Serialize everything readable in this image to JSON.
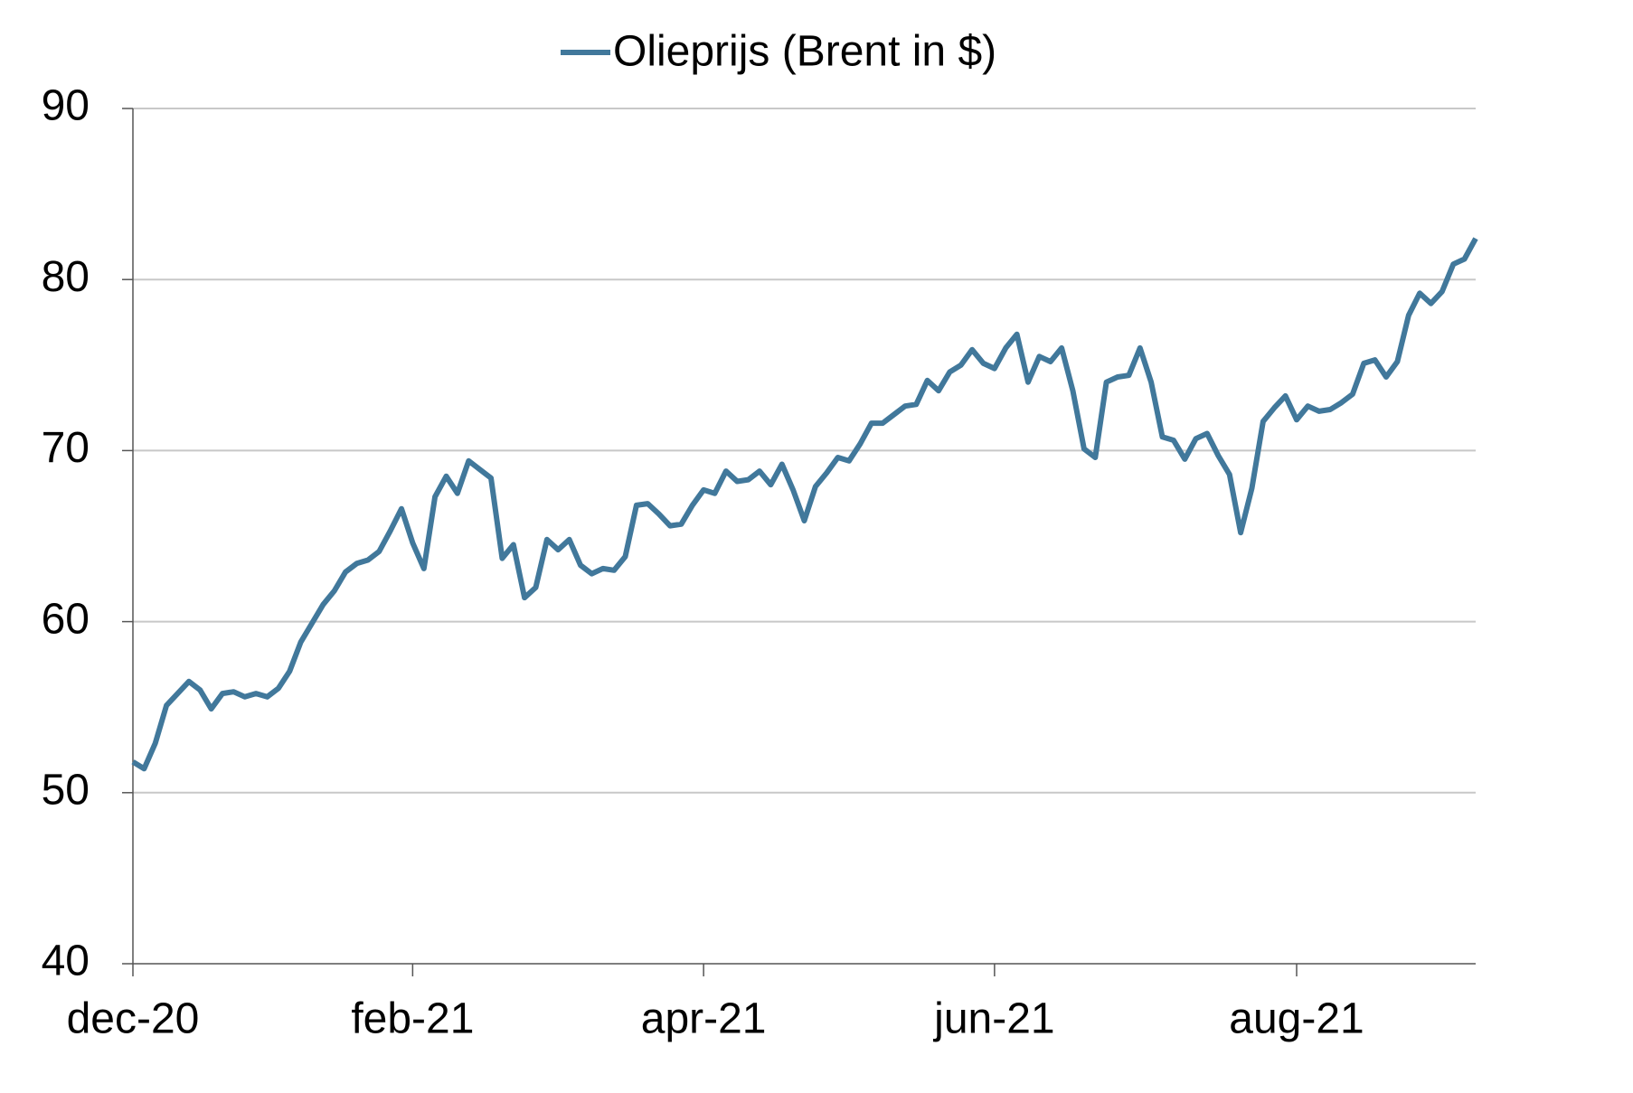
{
  "chart_data": {
    "type": "line",
    "legend": "top",
    "categories": [
      "dec-20",
      null,
      null,
      null,
      null,
      null,
      null,
      null,
      null,
      null,
      null,
      null,
      null,
      null,
      null,
      null,
      null,
      null,
      null,
      null,
      null,
      null,
      null,
      null,
      null,
      "feb-21",
      null,
      null,
      null,
      null,
      null,
      null,
      null,
      null,
      null,
      null,
      null,
      null,
      null,
      null,
      null,
      null,
      null,
      null,
      null,
      null,
      null,
      null,
      null,
      null,
      null,
      "apr-21",
      null,
      null,
      null,
      null,
      null,
      null,
      null,
      null,
      null,
      null,
      null,
      null,
      null,
      null,
      null,
      null,
      null,
      null,
      null,
      null,
      null,
      null,
      null,
      null,
      null,
      "jun-21",
      null,
      null,
      null,
      null,
      null,
      null,
      null,
      null,
      null,
      null,
      null,
      null,
      null,
      null,
      null,
      null,
      null,
      null,
      null,
      null,
      null,
      null,
      null,
      null,
      null,
      null,
      "aug-21",
      null,
      null,
      null,
      null,
      null,
      null,
      null,
      null,
      null,
      null,
      null,
      null,
      null,
      null,
      null,
      null
    ],
    "series": [
      {
        "name": "Olieprijs (Brent in $)",
        "color": "#41789b",
        "values": [
          51.8,
          51.4,
          52.9,
          55.1,
          55.8,
          56.5,
          56.0,
          54.9,
          55.8,
          55.9,
          55.6,
          55.8,
          55.6,
          56.1,
          57.1,
          58.8,
          59.9,
          61.0,
          61.8,
          62.9,
          63.4,
          63.6,
          64.1,
          65.3,
          66.6,
          64.6,
          63.1,
          67.3,
          68.5,
          67.5,
          69.4,
          68.9,
          68.4,
          63.7,
          64.5,
          61.4,
          62.0,
          64.8,
          64.2,
          64.8,
          63.3,
          62.8,
          63.1,
          63.0,
          63.8,
          66.8,
          66.9,
          66.3,
          65.6,
          65.7,
          66.8,
          67.7,
          67.5,
          68.8,
          68.2,
          68.3,
          68.8,
          68.0,
          69.2,
          67.7,
          65.9,
          67.9,
          68.7,
          69.6,
          69.4,
          70.4,
          71.6,
          71.6,
          72.1,
          72.6,
          72.7,
          74.1,
          73.5,
          74.6,
          75.0,
          75.9,
          75.1,
          74.8,
          76.0,
          76.8,
          74.0,
          75.5,
          75.2,
          76.0,
          73.5,
          70.1,
          69.6,
          74.0,
          74.3,
          74.4,
          76.0,
          74.0,
          70.8,
          70.6,
          69.5,
          70.7,
          71.0,
          69.7,
          68.6,
          65.2,
          67.8,
          71.7,
          72.5,
          73.2,
          71.8,
          72.6,
          72.3,
          72.4,
          72.8,
          73.3,
          75.1,
          75.3,
          74.3,
          75.2,
          77.9,
          79.2,
          78.6,
          79.3,
          80.9,
          81.2,
          82.4
        ]
      }
    ],
    "ylim": [
      40,
      90
    ],
    "yticks": [
      40,
      50,
      60,
      70,
      80,
      90
    ],
    "grid": true
  }
}
